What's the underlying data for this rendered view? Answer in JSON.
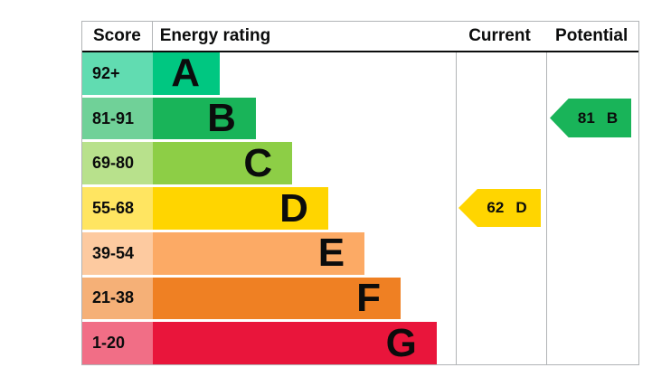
{
  "header": {
    "score": "Score",
    "energy_rating": "Energy rating",
    "current": "Current",
    "potential": "Potential"
  },
  "chart_data": {
    "type": "bar",
    "chart_kind": "energy-performance-certificate-rating",
    "columns": [
      "Score",
      "Energy rating",
      "Current",
      "Potential"
    ],
    "bands": [
      {
        "score": "92+",
        "letter": "A",
        "color": "#00c781",
        "bar_pct": 22.1
      },
      {
        "score": "81-91",
        "letter": "B",
        "color": "#19b459",
        "bar_pct": 34.0
      },
      {
        "score": "69-80",
        "letter": "C",
        "color": "#8dce46",
        "bar_pct": 46.0
      },
      {
        "score": "55-68",
        "letter": "D",
        "color": "#ffd500",
        "bar_pct": 57.9
      },
      {
        "score": "39-54",
        "letter": "E",
        "color": "#fcaa65",
        "bar_pct": 69.9
      },
      {
        "score": "21-38",
        "letter": "F",
        "color": "#ef8023",
        "bar_pct": 81.8
      },
      {
        "score": "1-20",
        "letter": "G",
        "color": "#e9153b",
        "bar_pct": 93.7
      }
    ],
    "current": {
      "value": "62",
      "band": "D",
      "band_index": 3,
      "color": "#ffd500"
    },
    "potential": {
      "value": "81",
      "band": "B",
      "band_index": 1,
      "color": "#19b459"
    },
    "layout": {
      "legend": "none",
      "grid": "off",
      "border_color": "#b1b4b6",
      "header_rule_color": "#0b0c0c"
    }
  }
}
